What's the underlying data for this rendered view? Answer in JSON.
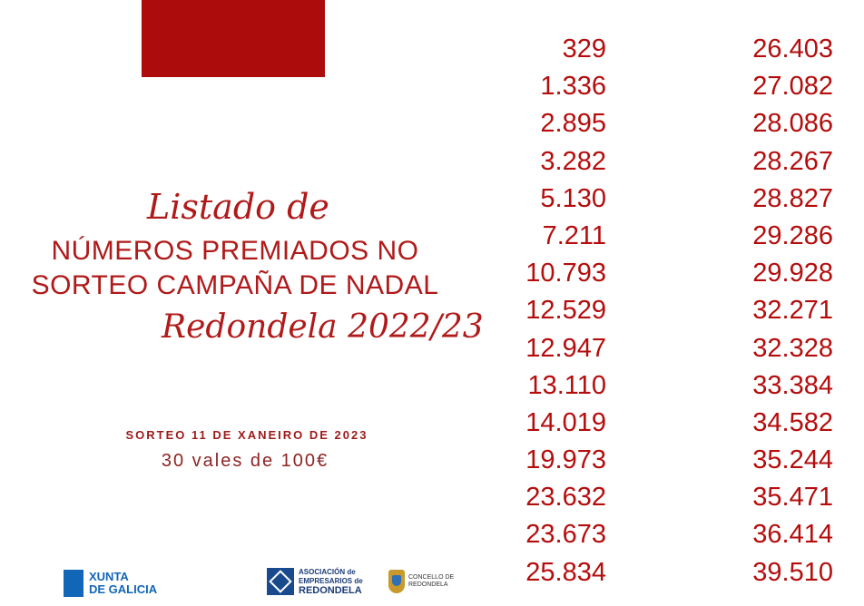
{
  "heading": {
    "script_top": "Listado de",
    "line1": "NÚMEROS PREMIADOS NO",
    "line2": "SORTEO CAMPAÑA DE NADAL",
    "script_bottom": "Redondela 2022/23"
  },
  "draw": {
    "date": "SORTEO 11 DE XANEIRO DE 2023",
    "vouchers": "30 vales de 100€"
  },
  "numbers": {
    "column1": [
      "329",
      "1.336",
      "2.895",
      "3.282",
      "5.130",
      "7.211",
      "10.793",
      "12.529",
      "12.947",
      "13.110",
      "14.019",
      "19.973",
      "23.632",
      "23.673",
      "25.834"
    ],
    "column2": [
      "26.403",
      "27.082",
      "28.086",
      "28.267",
      "28.827",
      "29.286",
      "29.928",
      "32.271",
      "32.328",
      "33.384",
      "34.582",
      "35.244",
      "35.471",
      "36.414",
      "39.510"
    ]
  },
  "logos": {
    "xunta": {
      "line1": "XUNTA",
      "line2": "DE GALICIA"
    },
    "asociacion": {
      "line1": "ASOCIACIÓN de",
      "line2": "EMPRESARIOS de",
      "line3": "REDONDELA"
    },
    "concello": {
      "line1": "CONCELLO DE",
      "line2": "REDONDELA"
    }
  },
  "colors": {
    "accent": "#b01a1a",
    "block": "#ad0c0c",
    "xunta_blue": "#1266b8",
    "asoc_blue": "#1a4a8e"
  }
}
